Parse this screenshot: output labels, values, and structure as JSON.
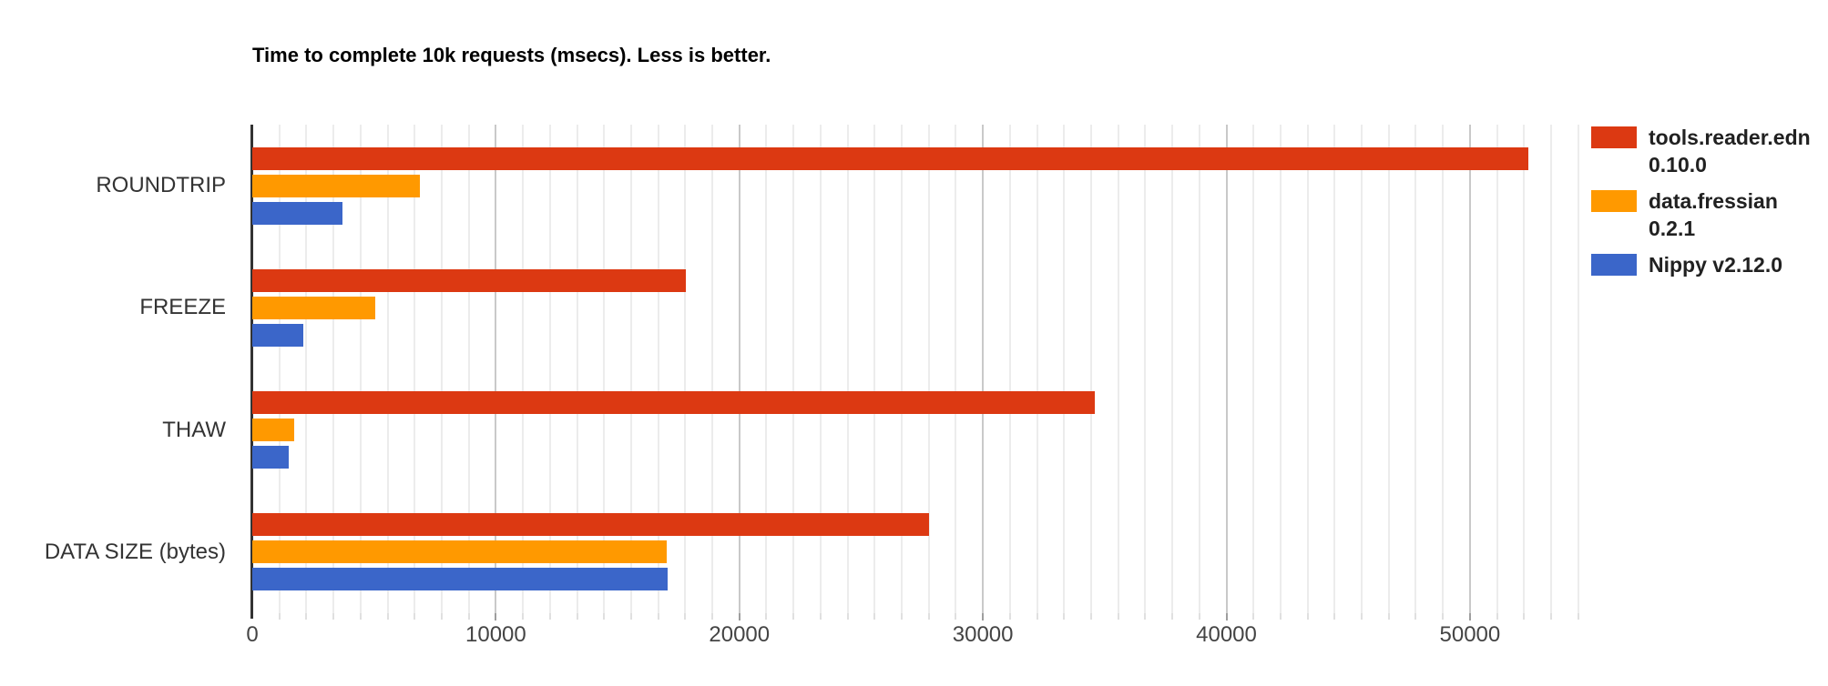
{
  "chart_data": {
    "type": "bar",
    "orientation": "horizontal",
    "title": "Time to complete 10k requests (msecs). Less is better.",
    "xlabel": "",
    "ylabel": "",
    "categories": [
      "ROUNDTRIP",
      "FREEZE",
      "THAW",
      "DATA SIZE (bytes)"
    ],
    "series": [
      {
        "name": "tools.reader.edn 0.10.0",
        "color": "#DC3912",
        "values": [
          52400,
          17800,
          34600,
          27800
        ]
      },
      {
        "name": "data.fressian 0.2.1",
        "color": "#FF9900",
        "values": [
          6900,
          5040,
          1730,
          17000
        ]
      },
      {
        "name": "Nippy v2.12.0",
        "color": "#3B66C9",
        "values": [
          3690,
          2110,
          1510,
          17050
        ]
      }
    ],
    "legend": [
      {
        "lines": [
          "tools.reader.edn",
          "0.10.0"
        ],
        "color": "#DC3912"
      },
      {
        "lines": [
          "data.fressian",
          "0.2.1"
        ],
        "color": "#FF9900"
      },
      {
        "lines": [
          "Nippy v2.12.0"
        ],
        "color": "#3B66C9"
      }
    ],
    "legend_position": "right",
    "grid": true,
    "x_ticks": [
      0,
      10000,
      20000,
      30000,
      40000,
      50000
    ],
    "x_tick_labels": [
      "0",
      "10000",
      "20000",
      "30000",
      "40000",
      "50000"
    ],
    "xlim": [
      0,
      54530
    ],
    "minor_gridlines_per_major": 9
  }
}
